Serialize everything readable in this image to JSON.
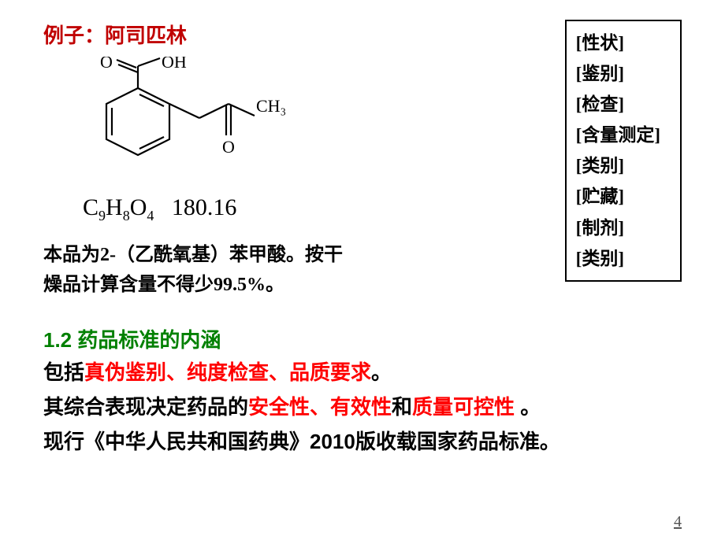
{
  "title": "例子：阿司匹林",
  "molecule": {
    "labels": {
      "O1": "O",
      "OH": "OH",
      "O2": "O",
      "CH3": "CH₃"
    }
  },
  "formula": {
    "compound_html": "C<sub>9</sub>H<sub>8</sub>O<sub>4</sub>",
    "mw": "180.16"
  },
  "infobox": [
    "[性状]",
    "[鉴别]",
    "[检查]",
    "[含量测定]",
    "[类别]",
    "[贮藏]",
    "[制剂]",
    "[类别]"
  ],
  "desc_line1": "本品为2-（乙酰氧基）苯甲酸。按干",
  "desc_line2": "燥品计算含量不得少99.5%。",
  "section_title": "1.2 药品标准的内涵",
  "para1_pre": "包括",
  "para1_red": "真伪鉴别、纯度检查、品质要求",
  "para1_post": "。",
  "para2_pre": "其综合表现决定药品的",
  "para2_red1": "安全性、有效性",
  "para2_mid": "和",
  "para2_red2": "质量可控性 ",
  "para2_post": "。",
  "para3": "现行《中华人民共和国药典》2010版收载国家药品标准。",
  "page_num": "4"
}
